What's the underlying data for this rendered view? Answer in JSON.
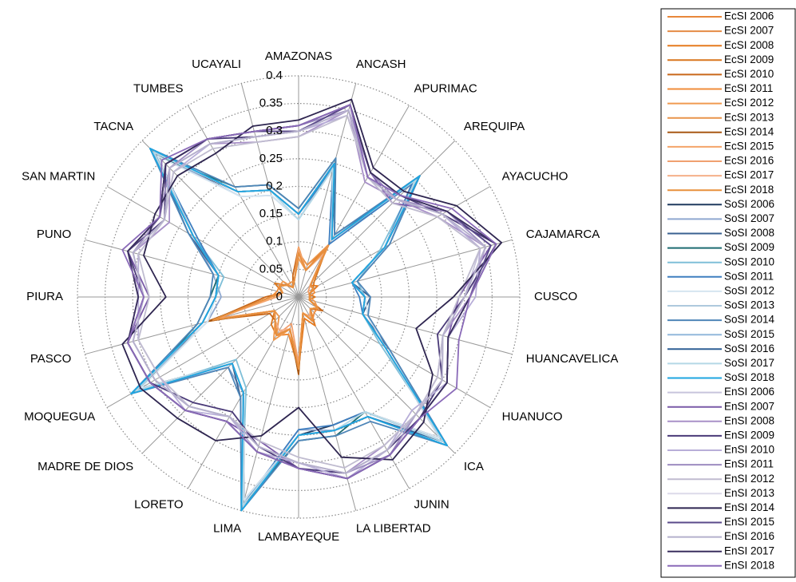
{
  "chart_data": {
    "type": "radar",
    "categories": [
      "AMAZONAS",
      "ANCASH",
      "APURIMAC",
      "AREQUIPA",
      "AYACUCHO",
      "CAJAMARCA",
      "CUSCO",
      "HUANCAVELICA",
      "HUANUCO",
      "ICA",
      "JUNIN",
      "LA LIBERTAD",
      "LAMBAYEQUE",
      "LIMA",
      "LORETO",
      "MADRE DE DIOS",
      "MOQUEGUA",
      "PASCO",
      "PIURA",
      "PUNO",
      "SAN MARTIN",
      "TACNA",
      "TUMBES",
      "UCAYALI"
    ],
    "ylim": [
      0,
      0.4
    ],
    "yticks": [
      0,
      0.05,
      0.1,
      0.15,
      0.2,
      0.25,
      0.3,
      0.35,
      0.4
    ],
    "grid": true,
    "legend": "right",
    "series": [
      {
        "name": "EcSI 2006",
        "color": "#e8873a",
        "values": [
          0.08,
          0.05,
          0.1,
          0.03,
          0.03,
          0.02,
          0.02,
          0.02,
          0.04,
          0.03,
          0.05,
          0.03,
          0.13,
          0.06,
          0.08,
          0.06,
          0.05,
          0.16,
          0.05,
          0.03,
          0.04,
          0.03,
          0.02,
          0.03
        ]
      },
      {
        "name": "EcSI 2007",
        "color": "#e58b45",
        "values": [
          0.09,
          0.05,
          0.11,
          0.03,
          0.03,
          0.02,
          0.02,
          0.02,
          0.04,
          0.03,
          0.05,
          0.03,
          0.12,
          0.06,
          0.07,
          0.06,
          0.05,
          0.15,
          0.05,
          0.03,
          0.04,
          0.03,
          0.02,
          0.03
        ]
      },
      {
        "name": "EcSI 2008",
        "color": "#e57a1f",
        "values": [
          0.08,
          0.06,
          0.1,
          0.03,
          0.04,
          0.02,
          0.02,
          0.02,
          0.04,
          0.03,
          0.06,
          0.04,
          0.13,
          0.07,
          0.08,
          0.06,
          0.05,
          0.16,
          0.05,
          0.03,
          0.04,
          0.03,
          0.02,
          0.03
        ]
      },
      {
        "name": "EcSI 2009",
        "color": "#d9771f",
        "values": [
          0.08,
          0.05,
          0.1,
          0.04,
          0.03,
          0.02,
          0.03,
          0.02,
          0.04,
          0.03,
          0.05,
          0.03,
          0.14,
          0.06,
          0.08,
          0.07,
          0.05,
          0.17,
          0.05,
          0.03,
          0.05,
          0.03,
          0.02,
          0.03
        ]
      },
      {
        "name": "EcSI 2010",
        "color": "#c9681a",
        "values": [
          0.09,
          0.05,
          0.09,
          0.03,
          0.03,
          0.02,
          0.02,
          0.02,
          0.05,
          0.03,
          0.05,
          0.03,
          0.13,
          0.06,
          0.08,
          0.06,
          0.06,
          0.16,
          0.06,
          0.03,
          0.04,
          0.03,
          0.02,
          0.04
        ]
      },
      {
        "name": "EcSI 2011",
        "color": "#f08c3a",
        "values": [
          0.08,
          0.05,
          0.1,
          0.03,
          0.03,
          0.03,
          0.02,
          0.02,
          0.04,
          0.04,
          0.05,
          0.03,
          0.12,
          0.07,
          0.08,
          0.06,
          0.05,
          0.15,
          0.05,
          0.04,
          0.04,
          0.03,
          0.02,
          0.03
        ]
      },
      {
        "name": "EcSI 2012",
        "color": "#f09a50",
        "values": [
          0.07,
          0.05,
          0.1,
          0.03,
          0.03,
          0.02,
          0.02,
          0.03,
          0.04,
          0.03,
          0.05,
          0.03,
          0.13,
          0.06,
          0.09,
          0.06,
          0.05,
          0.16,
          0.05,
          0.03,
          0.04,
          0.04,
          0.02,
          0.03
        ]
      },
      {
        "name": "EcSI 2013",
        "color": "#e9944a",
        "values": [
          0.08,
          0.06,
          0.11,
          0.03,
          0.03,
          0.02,
          0.02,
          0.02,
          0.04,
          0.03,
          0.05,
          0.03,
          0.13,
          0.06,
          0.08,
          0.05,
          0.05,
          0.16,
          0.05,
          0.03,
          0.04,
          0.03,
          0.03,
          0.03
        ]
      },
      {
        "name": "EcSI 2014",
        "color": "#a85814",
        "values": [
          0.08,
          0.05,
          0.1,
          0.03,
          0.03,
          0.02,
          0.02,
          0.02,
          0.04,
          0.03,
          0.05,
          0.03,
          0.14,
          0.06,
          0.08,
          0.06,
          0.05,
          0.17,
          0.05,
          0.03,
          0.04,
          0.03,
          0.02,
          0.03
        ]
      },
      {
        "name": "EcSI 2015",
        "color": "#f4a46a",
        "values": [
          0.09,
          0.05,
          0.1,
          0.03,
          0.03,
          0.02,
          0.02,
          0.02,
          0.04,
          0.03,
          0.04,
          0.03,
          0.13,
          0.06,
          0.08,
          0.06,
          0.05,
          0.16,
          0.04,
          0.03,
          0.04,
          0.03,
          0.02,
          0.03
        ]
      },
      {
        "name": "EcSI 2016",
        "color": "#f0a070",
        "values": [
          0.08,
          0.05,
          0.1,
          0.03,
          0.02,
          0.02,
          0.02,
          0.02,
          0.04,
          0.03,
          0.05,
          0.03,
          0.12,
          0.05,
          0.08,
          0.06,
          0.05,
          0.15,
          0.05,
          0.03,
          0.04,
          0.03,
          0.02,
          0.03
        ]
      },
      {
        "name": "EcSI 2017",
        "color": "#f5b08a",
        "values": [
          0.08,
          0.05,
          0.09,
          0.03,
          0.03,
          0.02,
          0.02,
          0.02,
          0.04,
          0.03,
          0.05,
          0.03,
          0.13,
          0.06,
          0.07,
          0.06,
          0.05,
          0.16,
          0.05,
          0.03,
          0.04,
          0.03,
          0.02,
          0.03
        ]
      },
      {
        "name": "EcSI 2018",
        "color": "#e8903c",
        "values": [
          0.08,
          0.05,
          0.1,
          0.03,
          0.03,
          0.02,
          0.02,
          0.02,
          0.04,
          0.03,
          0.05,
          0.03,
          0.13,
          0.06,
          0.08,
          0.06,
          0.05,
          0.16,
          0.05,
          0.03,
          0.04,
          0.03,
          0.02,
          0.03
        ]
      },
      {
        "name": "SoSI 2006",
        "color": "#1f3a5f",
        "values": [
          0.15,
          0.24,
          0.12,
          0.29,
          0.18,
          0.1,
          0.12,
          0.12,
          0.18,
          0.36,
          0.24,
          0.24,
          0.25,
          0.38,
          0.2,
          0.17,
          0.33,
          0.18,
          0.15,
          0.15,
          0.22,
          0.36,
          0.22,
          0.2
        ]
      },
      {
        "name": "SoSI 2007",
        "color": "#8fa8d0",
        "values": [
          0.14,
          0.25,
          0.12,
          0.3,
          0.19,
          0.11,
          0.12,
          0.13,
          0.18,
          0.37,
          0.25,
          0.25,
          0.24,
          0.39,
          0.2,
          0.18,
          0.34,
          0.17,
          0.14,
          0.16,
          0.22,
          0.37,
          0.21,
          0.19
        ]
      },
      {
        "name": "SoSI 2008",
        "color": "#3a6090",
        "values": [
          0.15,
          0.25,
          0.13,
          0.3,
          0.18,
          0.1,
          0.13,
          0.12,
          0.19,
          0.38,
          0.25,
          0.25,
          0.25,
          0.4,
          0.21,
          0.17,
          0.34,
          0.18,
          0.15,
          0.15,
          0.23,
          0.37,
          0.22,
          0.2
        ]
      },
      {
        "name": "SoSI 2009",
        "color": "#1d6b70",
        "values": [
          0.16,
          0.26,
          0.12,
          0.31,
          0.18,
          0.1,
          0.12,
          0.12,
          0.18,
          0.37,
          0.24,
          0.26,
          0.26,
          0.39,
          0.2,
          0.17,
          0.33,
          0.19,
          0.16,
          0.15,
          0.22,
          0.36,
          0.23,
          0.21
        ]
      },
      {
        "name": "SoSI 2010",
        "color": "#7fbfd8",
        "values": [
          0.15,
          0.25,
          0.12,
          0.3,
          0.17,
          0.11,
          0.12,
          0.12,
          0.17,
          0.38,
          0.25,
          0.25,
          0.25,
          0.4,
          0.19,
          0.16,
          0.35,
          0.18,
          0.15,
          0.14,
          0.22,
          0.38,
          0.22,
          0.2
        ]
      },
      {
        "name": "SoSI 2011",
        "color": "#3f7fc0",
        "values": [
          0.15,
          0.24,
          0.11,
          0.29,
          0.18,
          0.1,
          0.11,
          0.12,
          0.18,
          0.37,
          0.24,
          0.24,
          0.24,
          0.39,
          0.2,
          0.17,
          0.34,
          0.18,
          0.15,
          0.15,
          0.21,
          0.37,
          0.22,
          0.2
        ]
      },
      {
        "name": "SoSI 2012",
        "color": "#d5e5f0",
        "values": [
          0.14,
          0.24,
          0.12,
          0.3,
          0.18,
          0.1,
          0.12,
          0.13,
          0.18,
          0.36,
          0.24,
          0.25,
          0.25,
          0.38,
          0.2,
          0.17,
          0.33,
          0.17,
          0.15,
          0.15,
          0.22,
          0.36,
          0.21,
          0.19
        ]
      },
      {
        "name": "SoSI 2013",
        "color": "#aec9dd",
        "values": [
          0.15,
          0.25,
          0.12,
          0.3,
          0.18,
          0.1,
          0.12,
          0.12,
          0.18,
          0.37,
          0.25,
          0.25,
          0.25,
          0.39,
          0.2,
          0.17,
          0.34,
          0.18,
          0.15,
          0.15,
          0.22,
          0.37,
          0.22,
          0.2
        ]
      },
      {
        "name": "SoSI 2014",
        "color": "#4f86b8",
        "values": [
          0.16,
          0.26,
          0.13,
          0.31,
          0.19,
          0.11,
          0.13,
          0.13,
          0.19,
          0.38,
          0.26,
          0.26,
          0.26,
          0.4,
          0.21,
          0.18,
          0.35,
          0.19,
          0.16,
          0.16,
          0.23,
          0.38,
          0.23,
          0.21
        ]
      },
      {
        "name": "SoSI 2015",
        "color": "#92b8dc",
        "values": [
          0.15,
          0.25,
          0.12,
          0.3,
          0.18,
          0.1,
          0.12,
          0.12,
          0.18,
          0.37,
          0.25,
          0.25,
          0.25,
          0.39,
          0.2,
          0.17,
          0.34,
          0.18,
          0.15,
          0.15,
          0.22,
          0.37,
          0.22,
          0.2
        ]
      },
      {
        "name": "SoSI 2016",
        "color": "#2f5f95",
        "values": [
          0.15,
          0.25,
          0.12,
          0.31,
          0.18,
          0.1,
          0.12,
          0.12,
          0.18,
          0.37,
          0.25,
          0.25,
          0.25,
          0.39,
          0.2,
          0.17,
          0.34,
          0.18,
          0.15,
          0.15,
          0.22,
          0.37,
          0.22,
          0.2
        ]
      },
      {
        "name": "SoSI 2017",
        "color": "#b5d8e6",
        "values": [
          0.14,
          0.24,
          0.12,
          0.3,
          0.18,
          0.1,
          0.12,
          0.12,
          0.18,
          0.37,
          0.24,
          0.25,
          0.25,
          0.39,
          0.2,
          0.17,
          0.34,
          0.18,
          0.15,
          0.15,
          0.22,
          0.37,
          0.22,
          0.2
        ]
      },
      {
        "name": "SoSI 2018",
        "color": "#1ea5e0",
        "values": [
          0.15,
          0.25,
          0.12,
          0.31,
          0.18,
          0.1,
          0.12,
          0.12,
          0.18,
          0.38,
          0.25,
          0.25,
          0.25,
          0.4,
          0.2,
          0.17,
          0.35,
          0.18,
          0.15,
          0.15,
          0.22,
          0.38,
          0.22,
          0.2
        ]
      },
      {
        "name": "EnSI 2006",
        "color": "#c8c4dc",
        "values": [
          0.3,
          0.35,
          0.25,
          0.25,
          0.3,
          0.34,
          0.3,
          0.27,
          0.3,
          0.3,
          0.32,
          0.33,
          0.3,
          0.28,
          0.25,
          0.28,
          0.3,
          0.31,
          0.28,
          0.31,
          0.28,
          0.33,
          0.32,
          0.3
        ]
      },
      {
        "name": "EnSI 2007",
        "color": "#7a5aa8",
        "values": [
          0.31,
          0.36,
          0.26,
          0.24,
          0.31,
          0.36,
          0.29,
          0.28,
          0.31,
          0.31,
          0.33,
          0.34,
          0.31,
          0.27,
          0.26,
          0.29,
          0.31,
          0.32,
          0.27,
          0.32,
          0.29,
          0.34,
          0.33,
          0.31
        ]
      },
      {
        "name": "EnSI 2008",
        "color": "#a890c8",
        "values": [
          0.29,
          0.35,
          0.24,
          0.25,
          0.29,
          0.35,
          0.31,
          0.27,
          0.29,
          0.3,
          0.31,
          0.33,
          0.3,
          0.28,
          0.25,
          0.28,
          0.3,
          0.31,
          0.28,
          0.31,
          0.27,
          0.33,
          0.32,
          0.29
        ]
      },
      {
        "name": "EnSI 2009",
        "color": "#4a3a78",
        "values": [
          0.3,
          0.36,
          0.25,
          0.26,
          0.3,
          0.37,
          0.3,
          0.26,
          0.3,
          0.31,
          0.32,
          0.33,
          0.31,
          0.28,
          0.24,
          0.27,
          0.31,
          0.32,
          0.28,
          0.32,
          0.28,
          0.34,
          0.33,
          0.3
        ]
      },
      {
        "name": "EnSI 2010",
        "color": "#b8aed8",
        "values": [
          0.3,
          0.34,
          0.25,
          0.25,
          0.3,
          0.34,
          0.32,
          0.28,
          0.31,
          0.29,
          0.32,
          0.34,
          0.3,
          0.29,
          0.25,
          0.29,
          0.29,
          0.3,
          0.29,
          0.3,
          0.28,
          0.32,
          0.32,
          0.3
        ]
      },
      {
        "name": "EnSI 2011",
        "color": "#9d8cc0",
        "values": [
          0.31,
          0.35,
          0.26,
          0.25,
          0.31,
          0.35,
          0.3,
          0.27,
          0.3,
          0.3,
          0.33,
          0.33,
          0.3,
          0.28,
          0.25,
          0.28,
          0.3,
          0.31,
          0.28,
          0.31,
          0.29,
          0.33,
          0.33,
          0.31
        ]
      },
      {
        "name": "EnSI 2012",
        "color": "#c0bcd0",
        "values": [
          0.29,
          0.34,
          0.25,
          0.24,
          0.29,
          0.34,
          0.29,
          0.27,
          0.29,
          0.3,
          0.31,
          0.32,
          0.29,
          0.27,
          0.25,
          0.28,
          0.29,
          0.3,
          0.27,
          0.3,
          0.28,
          0.32,
          0.31,
          0.29
        ]
      },
      {
        "name": "EnSI 2013",
        "color": "#dcdaea",
        "values": [
          0.3,
          0.35,
          0.25,
          0.25,
          0.3,
          0.35,
          0.3,
          0.27,
          0.3,
          0.3,
          0.32,
          0.33,
          0.3,
          0.28,
          0.25,
          0.28,
          0.3,
          0.31,
          0.28,
          0.31,
          0.28,
          0.33,
          0.32,
          0.3
        ]
      },
      {
        "name": "EnSI 2014",
        "color": "#2e2550",
        "values": [
          0.32,
          0.37,
          0.27,
          0.27,
          0.33,
          0.38,
          0.28,
          0.22,
          0.28,
          0.32,
          0.34,
          0.3,
          0.2,
          0.26,
          0.3,
          0.31,
          0.33,
          0.33,
          0.24,
          0.29,
          0.3,
          0.31,
          0.3,
          0.32
        ]
      },
      {
        "name": "EnSI 2015",
        "color": "#5a4a8a",
        "values": [
          0.3,
          0.36,
          0.26,
          0.26,
          0.31,
          0.36,
          0.31,
          0.28,
          0.31,
          0.31,
          0.33,
          0.34,
          0.31,
          0.29,
          0.26,
          0.29,
          0.31,
          0.32,
          0.29,
          0.32,
          0.29,
          0.34,
          0.33,
          0.31
        ]
      },
      {
        "name": "EnSI 2016",
        "color": "#b5b0cc",
        "values": [
          0.3,
          0.35,
          0.25,
          0.25,
          0.3,
          0.35,
          0.3,
          0.27,
          0.3,
          0.3,
          0.32,
          0.33,
          0.3,
          0.28,
          0.25,
          0.28,
          0.3,
          0.31,
          0.28,
          0.31,
          0.28,
          0.33,
          0.32,
          0.3
        ]
      },
      {
        "name": "EnSI 2017",
        "color": "#3a2f5e",
        "values": [
          0.31,
          0.36,
          0.26,
          0.26,
          0.31,
          0.37,
          0.31,
          0.28,
          0.31,
          0.31,
          0.33,
          0.34,
          0.31,
          0.29,
          0.26,
          0.29,
          0.31,
          0.32,
          0.29,
          0.32,
          0.29,
          0.34,
          0.33,
          0.31
        ]
      },
      {
        "name": "EnSI 2018",
        "color": "#8a6ab8",
        "values": [
          0.31,
          0.36,
          0.25,
          0.26,
          0.32,
          0.37,
          0.31,
          0.3,
          0.33,
          0.31,
          0.33,
          0.34,
          0.31,
          0.29,
          0.26,
          0.29,
          0.31,
          0.32,
          0.28,
          0.33,
          0.29,
          0.35,
          0.33,
          0.31
        ]
      }
    ]
  }
}
